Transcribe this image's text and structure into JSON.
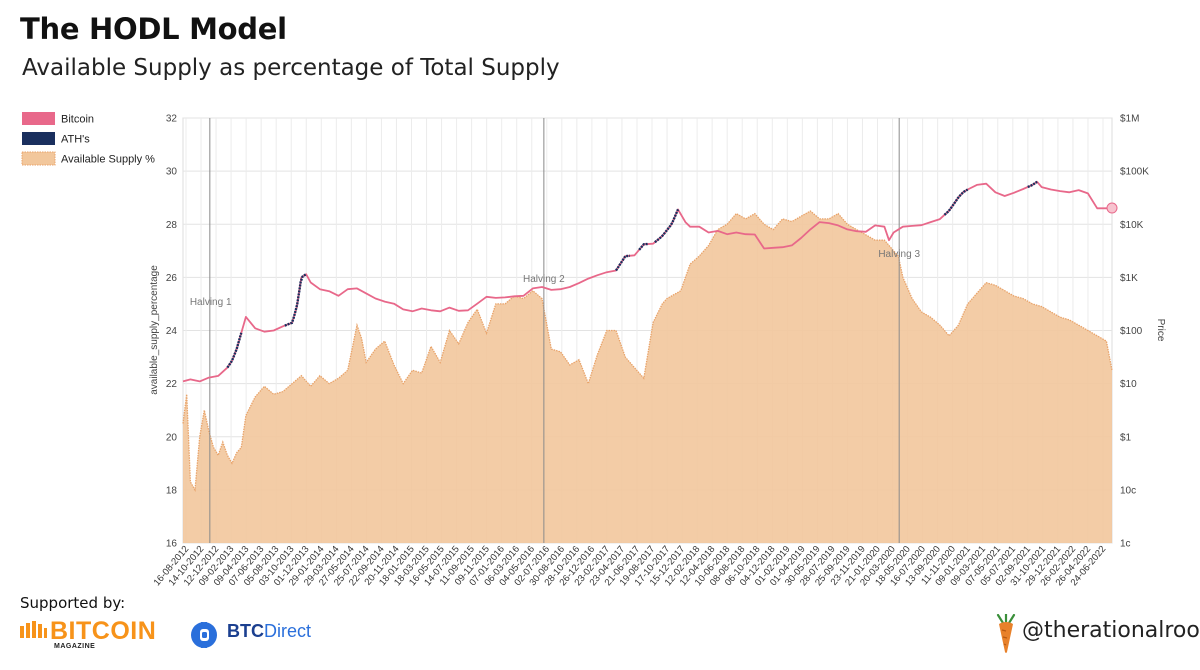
{
  "header": {
    "title": "The HODL Model",
    "subtitle": "Available Supply as percentage of Total Supply"
  },
  "footer": {
    "supported_by": "Supported by:",
    "sponsor1_name": "BITCOIN",
    "sponsor1_sub": "MAGAZINE",
    "sponsor2_prefix": "BTC",
    "sponsor2_suffix": "Direct",
    "handle": "@therationalroot"
  },
  "colors": {
    "bitcoin": "#e8688a",
    "ath": "#1a2f5e",
    "supply_fill": "#f2c79c",
    "supply_line": "#e8a36a",
    "halving_line": "#8a8a8a"
  },
  "chart_data": {
    "type": "area+line",
    "ylabel_left": "available_supply_percentage",
    "ylabel_right": "Price",
    "ylim_left": [
      16,
      32
    ],
    "yticks_left": [
      "16",
      "18",
      "20",
      "22",
      "24",
      "26",
      "28",
      "30",
      "32"
    ],
    "yticks_right": [
      "1c",
      "10c",
      "$1",
      "$10",
      "$100",
      "$1K",
      "$10K",
      "$100K",
      "$1M"
    ],
    "price_log_range": [
      0.01,
      1000000
    ],
    "legend": [
      {
        "label": "Bitcoin",
        "key": "bitcoin"
      },
      {
        "label": "ATH's",
        "key": "ath"
      },
      {
        "label": "Available Supply %",
        "key": "supply"
      }
    ],
    "x_range_years": [
      2012.62,
      2022.66
    ],
    "xtick_labels": [
      "16-08-2012",
      "14-10-2012",
      "12-12-2012",
      "09-02-2013",
      "09-04-2013",
      "07-06-2013",
      "05-08-2013",
      "03-10-2013",
      "01-12-2013",
      "29-01-2014",
      "29-03-2014",
      "27-05-2014",
      "25-07-2014",
      "22-09-2014",
      "20-11-2014",
      "18-01-2015",
      "18-03-2015",
      "16-05-2015",
      "14-07-2015",
      "11-09-2015",
      "09-11-2015",
      "07-01-2016",
      "06-03-2016",
      "04-05-2016",
      "02-07-2016",
      "30-08-2016",
      "28-10-2016",
      "26-12-2016",
      "23-02-2017",
      "23-04-2017",
      "21-06-2017",
      "19-08-2017",
      "17-10-2017",
      "15-12-2017",
      "12-02-2018",
      "12-04-2018",
      "10-06-2018",
      "08-08-2018",
      "06-10-2018",
      "04-12-2018",
      "01-02-2019",
      "01-04-2019",
      "30-05-2019",
      "28-07-2019",
      "25-09-2019",
      "23-11-2019",
      "21-01-2020",
      "20-03-2020",
      "18-05-2020",
      "16-07-2020",
      "13-09-2020",
      "11-11-2020",
      "09-01-2021",
      "09-03-2021",
      "07-05-2021",
      "05-07-2021",
      "02-09-2021",
      "31-10-2021",
      "29-12-2021",
      "26-02-2022",
      "26-04-2022",
      "24-06-2022"
    ],
    "halvings": [
      {
        "label": "Halving 1",
        "year": 2012.91
      },
      {
        "label": "Halving 2",
        "year": 2016.52
      },
      {
        "label": "Halving 3",
        "year": 2020.36
      }
    ],
    "available_supply": {
      "x": [
        2012.62,
        2012.66,
        2012.7,
        2012.75,
        2012.8,
        2012.85,
        2012.9,
        2012.95,
        2013.0,
        2013.05,
        2013.1,
        2013.15,
        2013.2,
        2013.25,
        2013.3,
        2013.4,
        2013.5,
        2013.6,
        2013.7,
        2013.8,
        2013.9,
        2014.0,
        2014.1,
        2014.2,
        2014.3,
        2014.4,
        2014.5,
        2014.55,
        2014.6,
        2014.7,
        2014.8,
        2014.9,
        2015.0,
        2015.1,
        2015.2,
        2015.3,
        2015.4,
        2015.5,
        2015.6,
        2015.7,
        2015.8,
        2015.9,
        2016.0,
        2016.1,
        2016.2,
        2016.3,
        2016.4,
        2016.5,
        2016.6,
        2016.7,
        2016.8,
        2016.9,
        2017.0,
        2017.1,
        2017.2,
        2017.3,
        2017.4,
        2017.5,
        2017.6,
        2017.7,
        2017.8,
        2017.85,
        2017.9,
        2018.0,
        2018.1,
        2018.2,
        2018.3,
        2018.4,
        2018.5,
        2018.6,
        2018.7,
        2018.8,
        2018.9,
        2019.0,
        2019.1,
        2019.2,
        2019.3,
        2019.4,
        2019.5,
        2019.6,
        2019.7,
        2019.8,
        2019.9,
        2020.0,
        2020.1,
        2020.2,
        2020.3,
        2020.35,
        2020.4,
        2020.5,
        2020.6,
        2020.7,
        2020.8,
        2020.9,
        2021.0,
        2021.1,
        2021.2,
        2021.3,
        2021.4,
        2021.5,
        2021.6,
        2021.7,
        2021.8,
        2021.9,
        2022.0,
        2022.1,
        2022.2,
        2022.3,
        2022.4,
        2022.5,
        2022.6,
        2022.66
      ],
      "y": [
        20.5,
        21.6,
        18.3,
        18.0,
        20.0,
        21.0,
        20.2,
        19.6,
        19.3,
        19.8,
        19.3,
        19.0,
        19.4,
        19.6,
        20.8,
        21.5,
        21.9,
        21.6,
        21.7,
        22.0,
        22.3,
        21.9,
        22.3,
        22.0,
        22.2,
        22.5,
        24.2,
        23.7,
        22.8,
        23.3,
        23.6,
        22.7,
        22.0,
        22.5,
        22.4,
        23.4,
        22.8,
        24.0,
        23.5,
        24.3,
        24.8,
        23.9,
        25.0,
        25.0,
        25.3,
        25.2,
        25.5,
        25.2,
        23.3,
        23.2,
        22.7,
        22.9,
        22.0,
        23.1,
        24.0,
        24.0,
        23.0,
        22.6,
        22.2,
        24.3,
        25.0,
        25.2,
        25.3,
        25.5,
        26.5,
        26.8,
        27.2,
        27.8,
        28.0,
        28.4,
        28.2,
        28.4,
        28.0,
        27.8,
        28.2,
        28.1,
        28.3,
        28.5,
        28.2,
        28.2,
        28.4,
        28.0,
        27.8,
        27.6,
        27.4,
        27.4,
        27.0,
        26.8,
        26.0,
        25.2,
        24.7,
        24.5,
        24.2,
        23.8,
        24.2,
        25.0,
        25.4,
        25.8,
        25.7,
        25.5,
        25.3,
        25.2,
        25.0,
        24.9,
        24.7,
        24.5,
        24.4,
        24.2,
        24.0,
        23.8,
        23.6,
        22.5
      ]
    },
    "bitcoin_price": {
      "x": [
        2012.62,
        2012.7,
        2012.8,
        2012.9,
        2013.0,
        2013.1,
        2013.15,
        2013.2,
        2013.25,
        2013.3,
        2013.4,
        2013.5,
        2013.6,
        2013.7,
        2013.8,
        2013.85,
        2013.9,
        2013.95,
        2014.0,
        2014.1,
        2014.2,
        2014.3,
        2014.4,
        2014.5,
        2014.6,
        2014.7,
        2014.8,
        2014.9,
        2015.0,
        2015.1,
        2015.2,
        2015.3,
        2015.4,
        2015.5,
        2015.6,
        2015.7,
        2015.8,
        2015.9,
        2016.0,
        2016.1,
        2016.2,
        2016.3,
        2016.4,
        2016.5,
        2016.6,
        2016.7,
        2016.8,
        2016.9,
        2017.0,
        2017.1,
        2017.2,
        2017.3,
        2017.4,
        2017.5,
        2017.6,
        2017.7,
        2017.8,
        2017.9,
        2017.97,
        2018.05,
        2018.1,
        2018.2,
        2018.3,
        2018.4,
        2018.5,
        2018.6,
        2018.7,
        2018.8,
        2018.9,
        2019.0,
        2019.1,
        2019.2,
        2019.3,
        2019.4,
        2019.5,
        2019.6,
        2019.7,
        2019.8,
        2019.9,
        2020.0,
        2020.1,
        2020.2,
        2020.25,
        2020.3,
        2020.4,
        2020.5,
        2020.6,
        2020.7,
        2020.8,
        2020.9,
        2021.0,
        2021.05,
        2021.1,
        2021.2,
        2021.3,
        2021.4,
        2021.5,
        2021.6,
        2021.7,
        2021.8,
        2021.85,
        2021.9,
        2022.0,
        2022.1,
        2022.2,
        2022.3,
        2022.4,
        2022.5,
        2022.6,
        2022.66
      ],
      "y": [
        11,
        12,
        11,
        13,
        14,
        20,
        27,
        45,
        90,
        180,
        110,
        95,
        100,
        120,
        140,
        280,
        1000,
        1150,
        800,
        600,
        550,
        450,
        600,
        620,
        500,
        400,
        350,
        320,
        250,
        230,
        260,
        240,
        230,
        270,
        235,
        240,
        320,
        430,
        410,
        420,
        440,
        450,
        620,
        660,
        580,
        600,
        660,
        780,
        950,
        1100,
        1250,
        1350,
        2500,
        2600,
        4200,
        4300,
        6000,
        10000,
        19000,
        11000,
        9000,
        9000,
        7000,
        7500,
        6500,
        7000,
        6500,
        6400,
        3500,
        3600,
        3700,
        4000,
        5500,
        8000,
        11000,
        10500,
        9500,
        8000,
        7400,
        7200,
        9500,
        9000,
        5000,
        7000,
        9000,
        9300,
        9600,
        11000,
        12500,
        18000,
        32000,
        40000,
        45000,
        55000,
        58000,
        40000,
        34000,
        39000,
        46000,
        55000,
        63000,
        50000,
        45000,
        42000,
        40000,
        44000,
        38000,
        20000,
        20000,
        20200
      ]
    },
    "ath_segments": [
      [
        2013.1,
        2013.25
      ],
      [
        2013.72,
        2013.95
      ],
      [
        2017.3,
        2017.45
      ],
      [
        2017.55,
        2017.65
      ],
      [
        2017.72,
        2017.97
      ],
      [
        2020.85,
        2021.1
      ],
      [
        2021.75,
        2021.85
      ]
    ]
  }
}
